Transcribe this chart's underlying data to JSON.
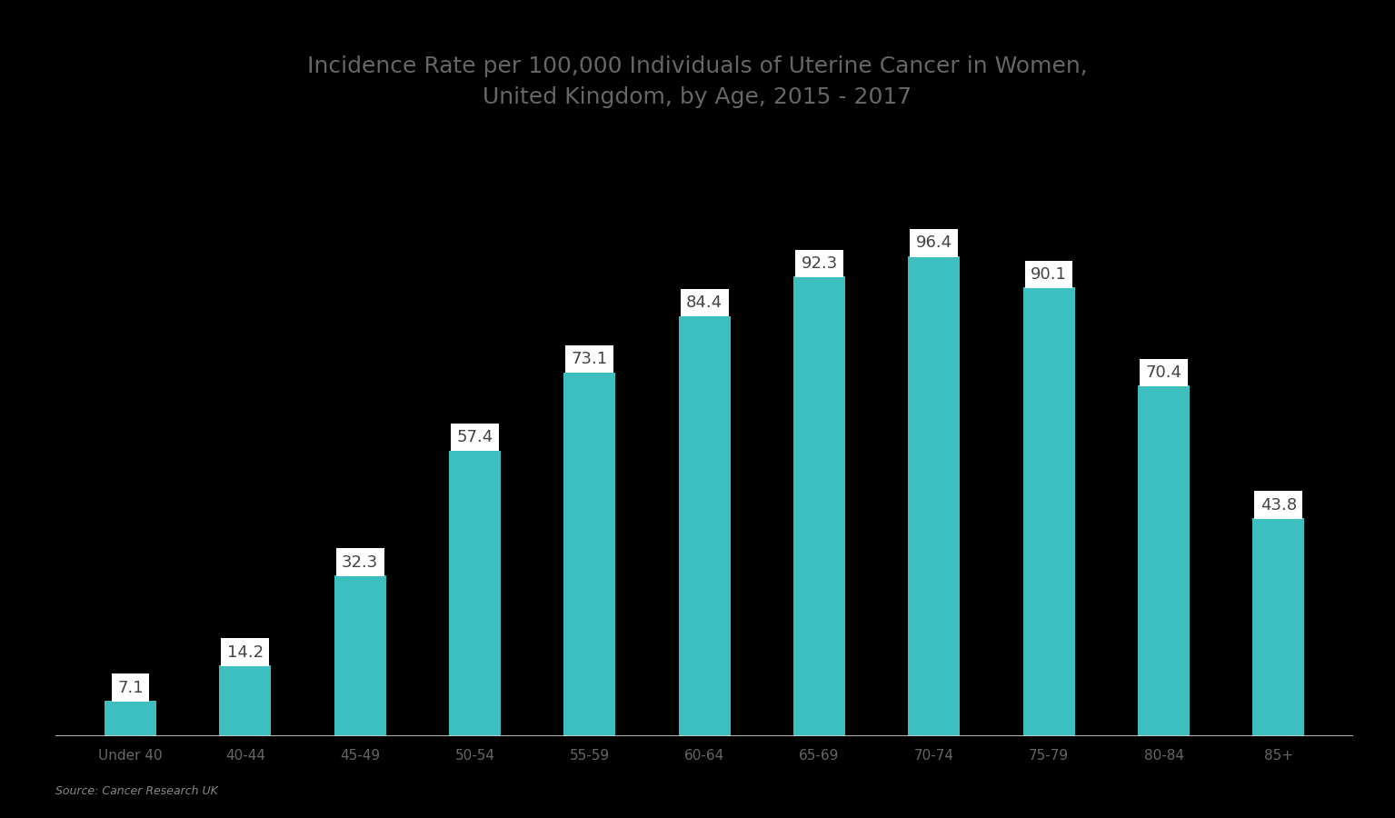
{
  "title_line1": "Incidence Rate per 100,000 Individuals of Uterine Cancer in Women,",
  "title_line2": "United Kingdom, by Age, 2015 - 2017",
  "categories": [
    "Under 40",
    "40-44",
    "45-49",
    "50-54",
    "55-59",
    "60-64",
    "65-69",
    "70-74",
    "75-79",
    "80-84",
    "85+"
  ],
  "values": [
    7.1,
    14.2,
    32.3,
    57.4,
    73.1,
    84.4,
    92.3,
    96.4,
    90.1,
    70.4,
    43.8
  ],
  "bar_color": "#3dbfbf",
  "label_bg_color": "#ffffff",
  "label_text_color": "#444444",
  "title_color": "#666666",
  "axis_label_color": "#666666",
  "background_color": "#000000",
  "plot_bg_color": "#000000",
  "baseline_color": "#cccccc",
  "source_text": "Source: Cancer Research UK",
  "ylim": [
    0,
    115
  ],
  "title_fontsize": 18,
  "tick_fontsize": 11,
  "label_fontsize": 13
}
